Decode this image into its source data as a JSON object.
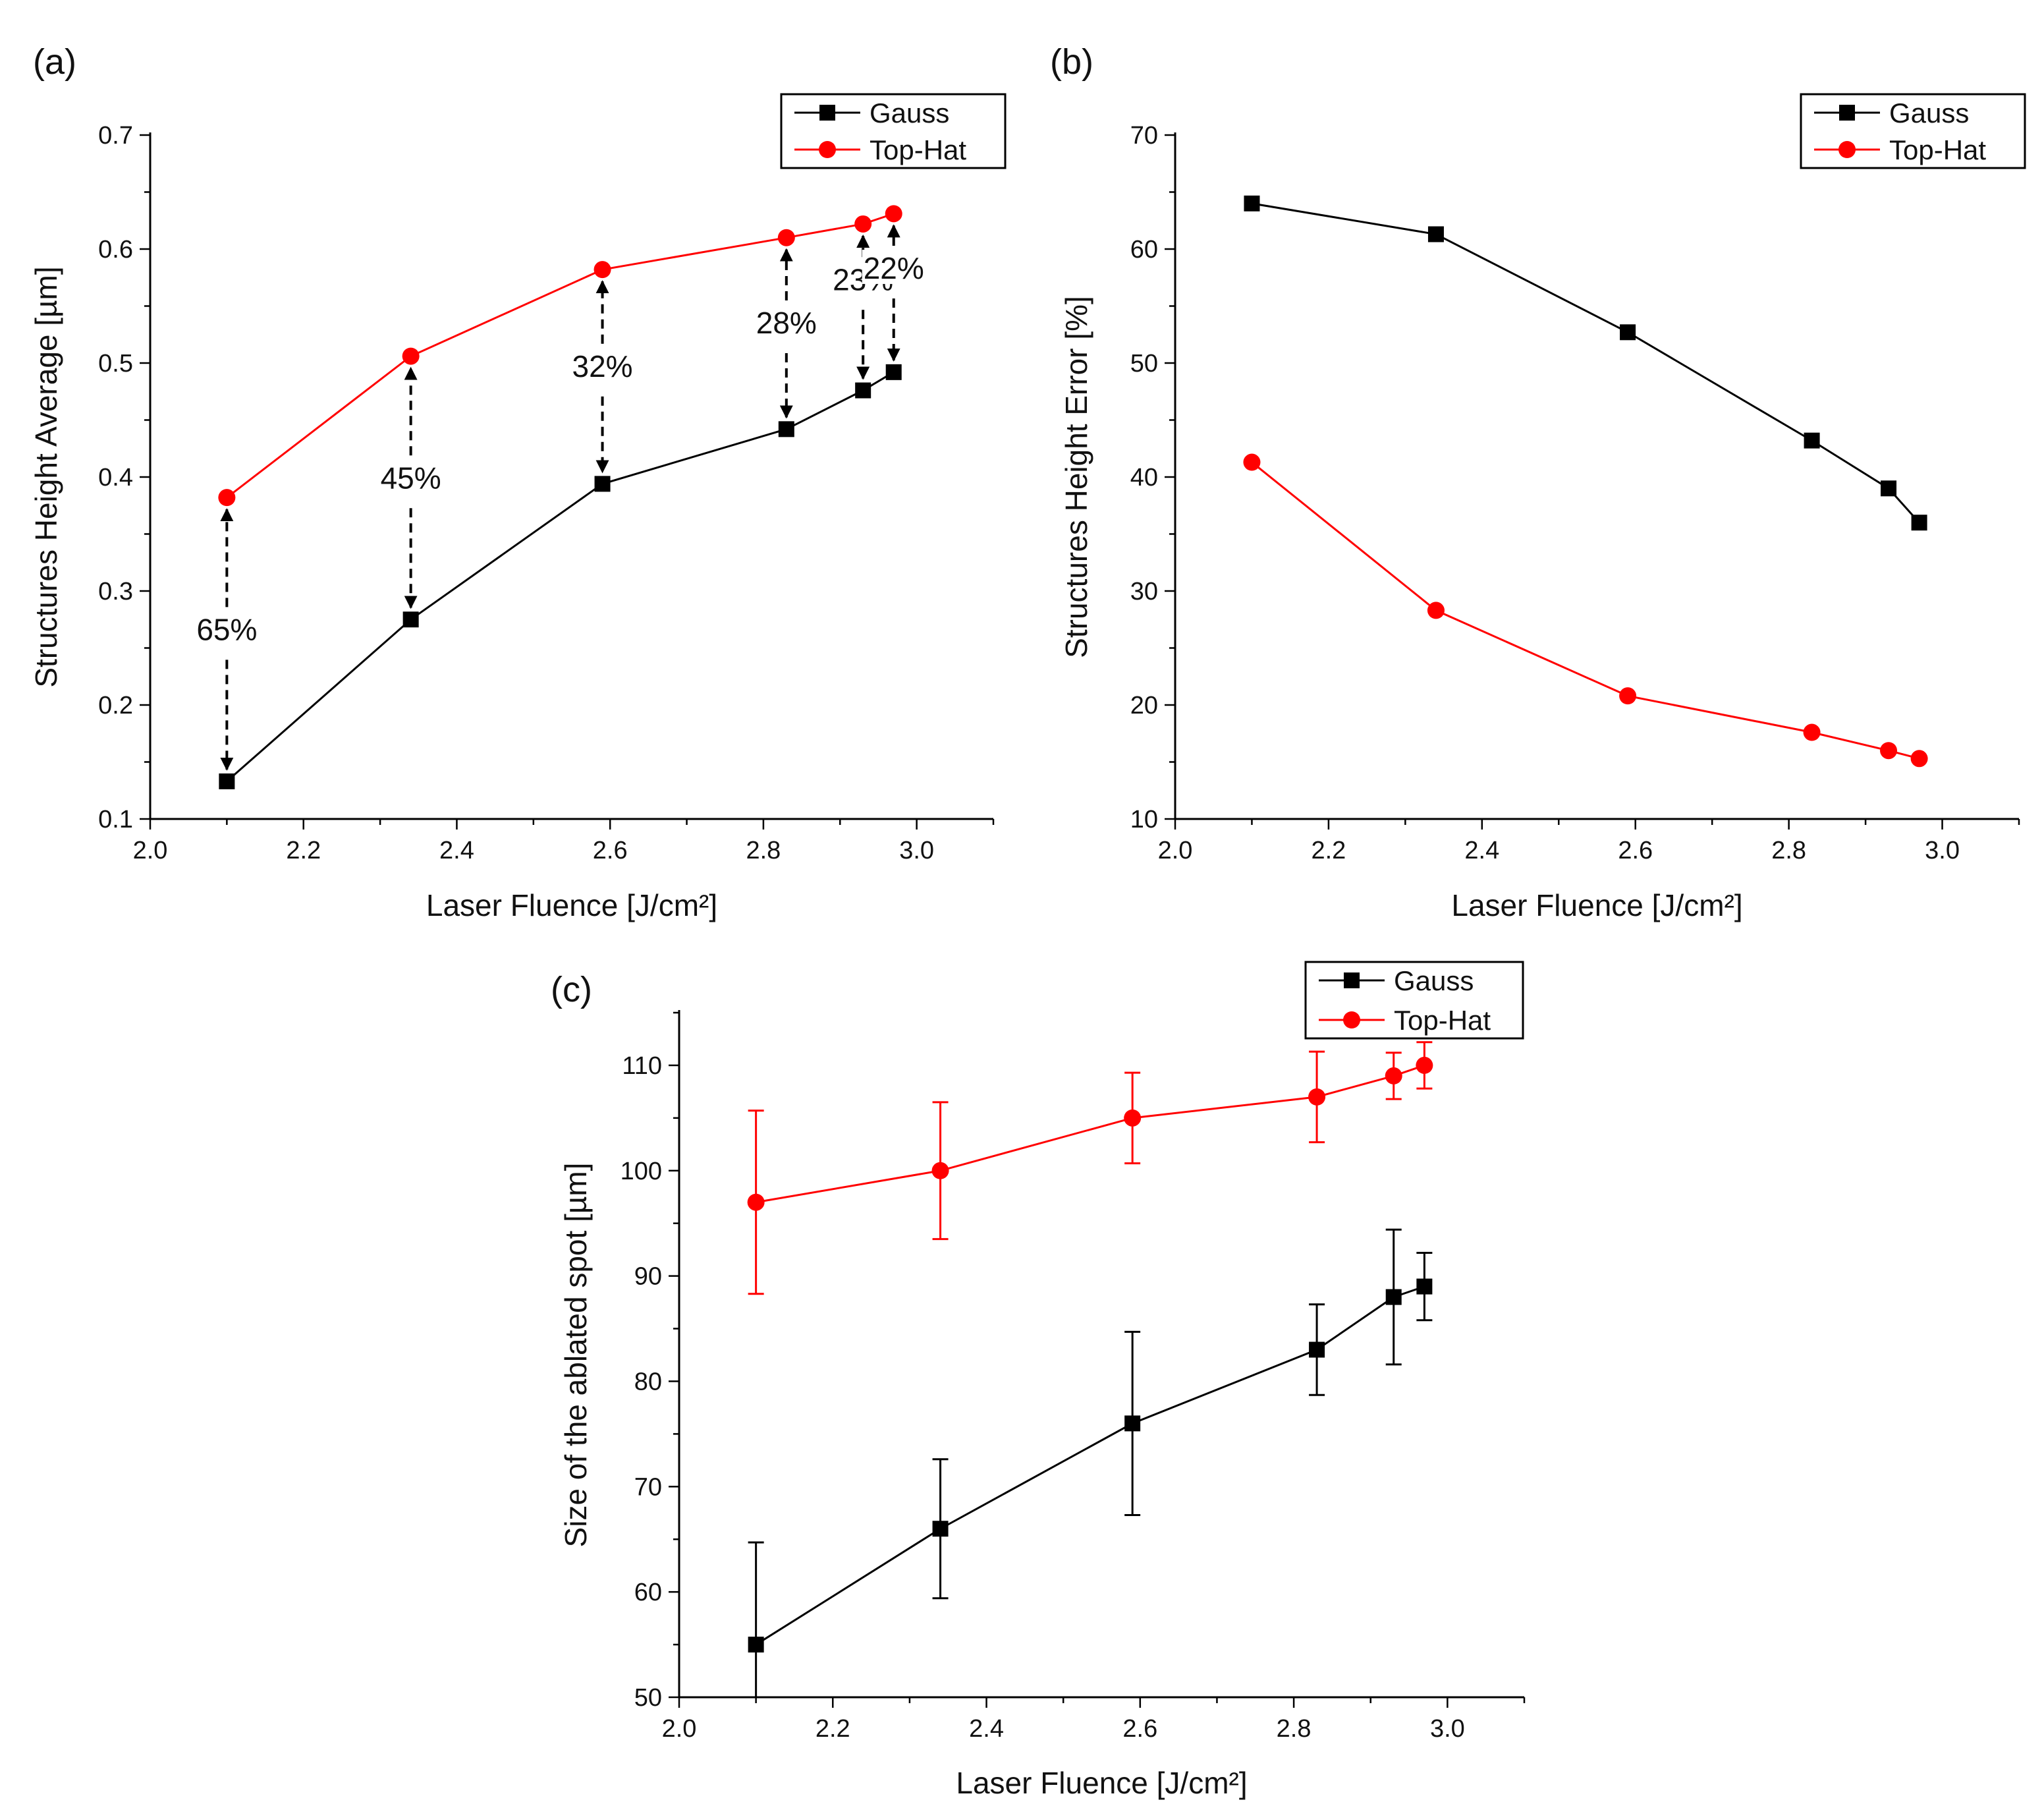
{
  "chart_data": [
    {
      "panel_label": "(a)",
      "type": "line",
      "xlabel": "Laser Fluence [J/cm²]",
      "ylabel": "Structures Height Average [µm]",
      "xlim": [
        2.0,
        3.1
      ],
      "ylim": [
        0.1,
        0.7
      ],
      "xticks": [
        "2.0",
        "2.2",
        "2.4",
        "2.6",
        "2.8",
        "3.0"
      ],
      "yticks": [
        "0.1",
        "0.2",
        "0.3",
        "0.4",
        "0.5",
        "0.6",
        "0.7"
      ],
      "grid": false,
      "legend": "top-right",
      "x": [
        2.1,
        2.34,
        2.59,
        2.83,
        2.93,
        2.97
      ],
      "series": [
        {
          "name": "Gauss",
          "color": "#000000",
          "marker": "square",
          "values": [
            0.133,
            0.275,
            0.394,
            0.442,
            0.476,
            0.492
          ]
        },
        {
          "name": "Top-Hat",
          "color": "#ff0000",
          "marker": "circle",
          "values": [
            0.382,
            0.506,
            0.582,
            0.61,
            0.622,
            0.631
          ]
        }
      ],
      "annotations": [
        {
          "text": "65%",
          "x": 2.1,
          "y_from": 0.133,
          "y_to": 0.382,
          "label_y": 0.257
        },
        {
          "text": "45%",
          "x": 2.34,
          "y_from": 0.275,
          "y_to": 0.506,
          "label_y": 0.39
        },
        {
          "text": "32%",
          "x": 2.59,
          "y_from": 0.394,
          "y_to": 0.582,
          "label_y": 0.488
        },
        {
          "text": "28%",
          "x": 2.83,
          "y_from": 0.442,
          "y_to": 0.61,
          "label_y": 0.526
        },
        {
          "text": "23%",
          "x": 2.93,
          "y_from": 0.476,
          "y_to": 0.622,
          "label_y": 0.564
        },
        {
          "text": "22%",
          "x": 2.97,
          "y_from": 0.492,
          "y_to": 0.631,
          "label_y": 0.574
        }
      ]
    },
    {
      "panel_label": "(b)",
      "type": "line",
      "xlabel": "Laser Fluence [J/cm²]",
      "ylabel": "Structures Height Error [%]",
      "xlim": [
        2.0,
        3.1
      ],
      "ylim": [
        10,
        70
      ],
      "xticks": [
        "2.0",
        "2.2",
        "2.4",
        "2.6",
        "2.8",
        "3.0"
      ],
      "yticks": [
        "10",
        "20",
        "30",
        "40",
        "50",
        "60",
        "70"
      ],
      "grid": false,
      "legend": "top-right",
      "x": [
        2.1,
        2.34,
        2.59,
        2.83,
        2.93,
        2.97
      ],
      "series": [
        {
          "name": "Gauss",
          "color": "#000000",
          "marker": "square",
          "values": [
            64.0,
            61.3,
            52.7,
            43.2,
            39.0,
            36.0
          ]
        },
        {
          "name": "Top-Hat",
          "color": "#ff0000",
          "marker": "circle",
          "values": [
            41.3,
            28.3,
            20.8,
            17.6,
            16.0,
            15.3
          ]
        }
      ]
    },
    {
      "panel_label": "(c)",
      "type": "line",
      "xlabel": "Laser Fluence [J/cm²]",
      "ylabel": "Size of the ablated spot [µm]",
      "xlim": [
        2.0,
        3.1
      ],
      "ylim": [
        50,
        115
      ],
      "xticks": [
        "2.0",
        "2.2",
        "2.4",
        "2.6",
        "2.8",
        "3.0"
      ],
      "yticks": [
        "50",
        "60",
        "70",
        "80",
        "90",
        "100",
        "110"
      ],
      "grid": false,
      "legend": "top-right",
      "x": [
        2.1,
        2.34,
        2.59,
        2.83,
        2.93,
        2.97
      ],
      "series": [
        {
          "name": "Gauss",
          "color": "#000000",
          "marker": "square",
          "values": [
            55,
            66,
            76,
            83,
            88,
            89
          ],
          "error": [
            9.7,
            6.6,
            8.7,
            4.3,
            6.4,
            3.2
          ]
        },
        {
          "name": "Top-Hat",
          "color": "#ff0000",
          "marker": "circle",
          "values": [
            97,
            100,
            105,
            107,
            109,
            110
          ],
          "error": [
            8.7,
            6.5,
            4.3,
            4.3,
            2.2,
            2.2
          ]
        }
      ]
    }
  ]
}
